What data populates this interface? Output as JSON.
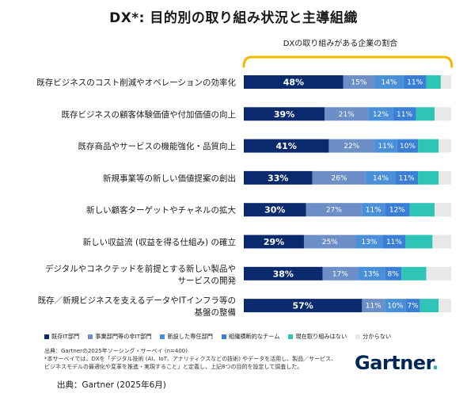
{
  "header": {
    "title": "DX*: 目的別の取り組み状況と主導組織",
    "bracket_label": "DXの取り組みがある企業の割合"
  },
  "colors": {
    "bracket": "#f2b800",
    "text": "#1a1a1a",
    "logo": "#002856",
    "logo_dot": "#2fb5ad"
  },
  "chart_data": {
    "type": "bar",
    "orientation": "horizontal",
    "stacked": true,
    "categories": [
      [
        "既存ビジネスのコスト削減やオペレーションの効率化"
      ],
      [
        "既存ビジネスの顧客体験価値や付加価値の向上"
      ],
      [
        "既存商品やサービスの機能強化・品質向上"
      ],
      [
        "新規事業等の新しい価値提案の創出"
      ],
      [
        "新しい顧客ターゲットやチャネルの拡大"
      ],
      [
        "新しい収益流 (収益を得る仕組み) の確立"
      ],
      [
        "デジタルやコネクテッドを前提とする新しい製品や",
        "サービスの開発"
      ],
      [
        "既存／新規ビジネスを支えるデータやITインフラ等の",
        "基盤の整備"
      ]
    ],
    "series": [
      {
        "name": "既存IT部門",
        "color": "#0a2a6e",
        "values": [
          48,
          39,
          41,
          33,
          30,
          29,
          38,
          57
        ]
      },
      {
        "name": "事業部門等の非IT部門",
        "color": "#6b8fc6",
        "values": [
          15,
          21,
          22,
          26,
          27,
          25,
          17,
          11
        ]
      },
      {
        "name": "新設した専任部門",
        "color": "#4a90d9",
        "values": [
          14,
          12,
          11,
          14,
          11,
          13,
          13,
          10
        ]
      },
      {
        "name": "組織横断的なチーム",
        "color": "#3a7fd5",
        "values": [
          11,
          11,
          10,
          11,
          12,
          11,
          8,
          7
        ]
      },
      {
        "name": "現在取り組みはない",
        "color": "#2ec4b6",
        "values": [
          7,
          9,
          10,
          10,
          12,
          13,
          12,
          9
        ]
      },
      {
        "name": "分からない",
        "color": "#e8e8e8",
        "values": [
          5,
          8,
          6,
          6,
          8,
          9,
          12,
          6
        ]
      }
    ],
    "value_labels": [
      [
        "48%",
        "15%",
        "14%",
        "11%",
        "",
        ""
      ],
      [
        "39%",
        "21%",
        "12%",
        "11%",
        "",
        ""
      ],
      [
        "41%",
        "22%",
        "11%",
        "10%",
        "",
        ""
      ],
      [
        "33%",
        "26%",
        "14%",
        "11%",
        "",
        ""
      ],
      [
        "30%",
        "27%",
        "11%",
        "12%",
        "",
        ""
      ],
      [
        "29%",
        "25%",
        "13%",
        "11%",
        "",
        ""
      ],
      [
        "38%",
        "17%",
        "13%",
        "8%",
        "",
        ""
      ],
      [
        "57%",
        "11%",
        "10%",
        "7%",
        "",
        ""
      ]
    ],
    "xlim": [
      0,
      100
    ],
    "bracket_covers_series": 4,
    "legend_position": "bottom"
  },
  "legend": [
    {
      "label": "既存IT部門",
      "color": "#0a2a6e"
    },
    {
      "label": "事業部門等の非IT部門",
      "color": "#6b8fc6"
    },
    {
      "label": "新設した専任部門",
      "color": "#4a90d9"
    },
    {
      "label": "組織横断的なチーム",
      "color": "#3a7fd5"
    },
    {
      "label": "現在取り組みはない",
      "color": "#2ec4b6"
    },
    {
      "label": "分からない",
      "color": "#e8e8e8"
    }
  ],
  "notes": {
    "line1": "出典：Gartnerの2025年ソーシング・サーベイ (n=400)",
    "line2": "*本サーベイでは、DXを「デジタル技術 (AI、IoT、アナリティクスなどの技術) やデータを活用し、製品／サービス、",
    "line3": "ビジネスモデルの最適化や変革を推進・実現すること」と定義し、上記8つの目的を設定して調査した。"
  },
  "logo": {
    "text": "Gartner",
    "dot": "."
  },
  "source": "出典：Gartner (2025年6月)"
}
